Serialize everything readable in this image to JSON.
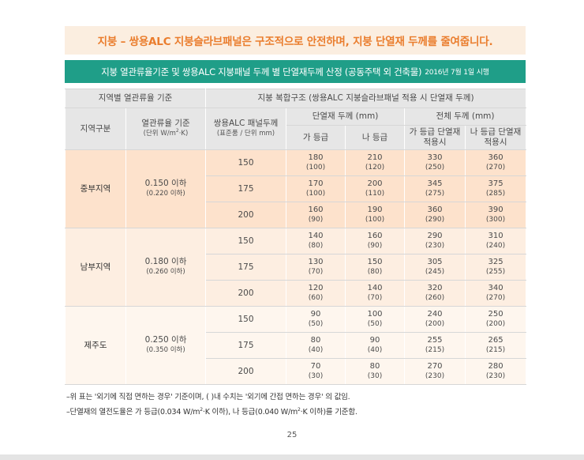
{
  "headline": "지붕 – 쌍용ALC 지붕슬라브패널은 구조적으로 안전하며, 지붕 단열재 두께를 줄여줍니다.",
  "subtitle": "지붕 열관류율기준 및 쌍용ALC 지붕패널 두께 별 단열재두께 산정 (공동주택 외 건축물)",
  "subtitle_date": "2016년 7월 1일 시행",
  "table": {
    "header_region_standard": "지역별 열관류율 기준",
    "header_composite": "지붕 복합구조 (쌍용ALC 지붕슬라브패널 적용 시 단열재 두께)",
    "header_region": "지역구분",
    "header_standard": "열관류율 기준",
    "header_standard_unit_pre": "(단위 W/m",
    "header_standard_unit_post": "·K)",
    "header_panel": "쌍용ALC 패널두께",
    "header_panel_unit": "(표준품 / 단위 mm)",
    "header_insulation": "단열재 두께 (mm)",
    "header_total": "전체 두께 (mm)",
    "header_grade_a": "가 등급",
    "header_grade_b": "나 등급",
    "header_total_a": "가 등급 단열재 적용시",
    "header_total_b": "나 등급 단열재 적용시",
    "regions": [
      {
        "name": "중부지역",
        "standard": "0.150 이하",
        "standard_sub": "(0.220 이하)",
        "rows": [
          {
            "panel": "150",
            "ins_a": "180",
            "ins_a_sub": "(100)",
            "ins_b": "210",
            "ins_b_sub": "(120)",
            "tot_a": "330",
            "tot_a_sub": "(250)",
            "tot_b": "360",
            "tot_b_sub": "(270)"
          },
          {
            "panel": "175",
            "ins_a": "170",
            "ins_a_sub": "(100)",
            "ins_b": "200",
            "ins_b_sub": "(110)",
            "tot_a": "345",
            "tot_a_sub": "(275)",
            "tot_b": "375",
            "tot_b_sub": "(285)"
          },
          {
            "panel": "200",
            "ins_a": "160",
            "ins_a_sub": "(90)",
            "ins_b": "190",
            "ins_b_sub": "(100)",
            "tot_a": "360",
            "tot_a_sub": "(290)",
            "tot_b": "390",
            "tot_b_sub": "(300)"
          }
        ]
      },
      {
        "name": "남부지역",
        "standard": "0.180 이하",
        "standard_sub": "(0.260 이하)",
        "rows": [
          {
            "panel": "150",
            "ins_a": "140",
            "ins_a_sub": "(80)",
            "ins_b": "160",
            "ins_b_sub": "(90)",
            "tot_a": "290",
            "tot_a_sub": "(230)",
            "tot_b": "310",
            "tot_b_sub": "(240)"
          },
          {
            "panel": "175",
            "ins_a": "130",
            "ins_a_sub": "(70)",
            "ins_b": "150",
            "ins_b_sub": "(80)",
            "tot_a": "305",
            "tot_a_sub": "(245)",
            "tot_b": "325",
            "tot_b_sub": "(255)"
          },
          {
            "panel": "200",
            "ins_a": "120",
            "ins_a_sub": "(60)",
            "ins_b": "140",
            "ins_b_sub": "(70)",
            "tot_a": "320",
            "tot_a_sub": "(260)",
            "tot_b": "340",
            "tot_b_sub": "(270)"
          }
        ]
      },
      {
        "name": "제주도",
        "standard": "0.250 이하",
        "standard_sub": "(0.350 이하)",
        "rows": [
          {
            "panel": "150",
            "ins_a": "90",
            "ins_a_sub": "(50)",
            "ins_b": "100",
            "ins_b_sub": "(50)",
            "tot_a": "240",
            "tot_a_sub": "(200)",
            "tot_b": "250",
            "tot_b_sub": "(200)"
          },
          {
            "panel": "175",
            "ins_a": "80",
            "ins_a_sub": "(40)",
            "ins_b": "90",
            "ins_b_sub": "(40)",
            "tot_a": "255",
            "tot_a_sub": "(215)",
            "tot_b": "265",
            "tot_b_sub": "(215)"
          },
          {
            "panel": "200",
            "ins_a": "70",
            "ins_a_sub": "(30)",
            "ins_b": "80",
            "ins_b_sub": "(30)",
            "tot_a": "270",
            "tot_a_sub": "(230)",
            "tot_b": "280",
            "tot_b_sub": "(230)"
          }
        ]
      }
    ]
  },
  "superscript": "2",
  "note1": "–위 표는 '외기에 직접 면하는 경우' 기준이며, ( )내 수치는 '외기에 간접 면하는 경우' 의 값임.",
  "note2_pre": "–단열재의 열전도율은 가 등급(0.034 W/m",
  "note2_mid": "·K 이하), 나 등급(0.040 W/m",
  "note2_post": "·K 이하)를 기준함.",
  "page_number": "25"
}
